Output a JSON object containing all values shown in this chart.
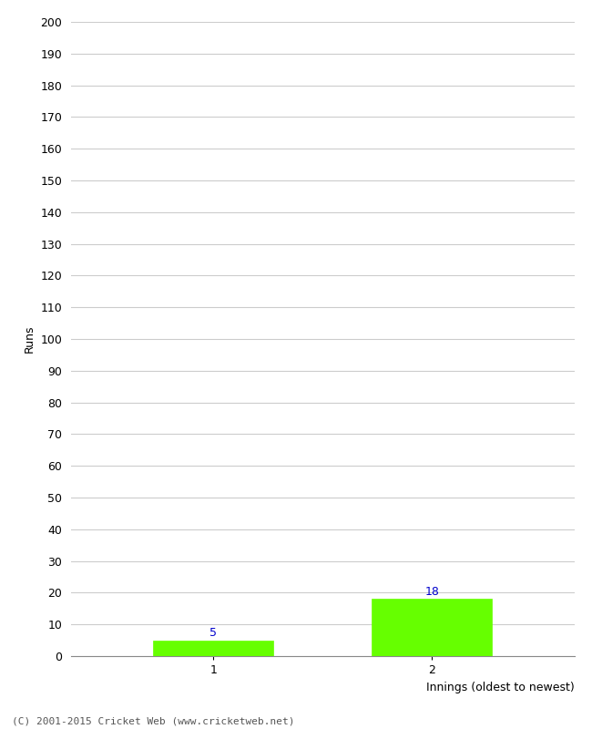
{
  "xlabel": "Innings (oldest to newest)",
  "ylabel": "Runs",
  "categories": [
    "1",
    "2"
  ],
  "values": [
    5,
    18
  ],
  "bar_color": "#66ff00",
  "bar_edge_color": "#66ff00",
  "value_label_color": "#0000cc",
  "ylim": [
    0,
    200
  ],
  "yticks": [
    0,
    10,
    20,
    30,
    40,
    50,
    60,
    70,
    80,
    90,
    100,
    110,
    120,
    130,
    140,
    150,
    160,
    170,
    180,
    190,
    200
  ],
  "background_color": "#ffffff",
  "grid_color": "#cccccc",
  "footnote": "(C) 2001-2015 Cricket Web (www.cricketweb.net)",
  "footnote_color": "#555555",
  "bar_width": 0.55,
  "figsize": [
    6.5,
    8.0
  ],
  "dpi": 100
}
